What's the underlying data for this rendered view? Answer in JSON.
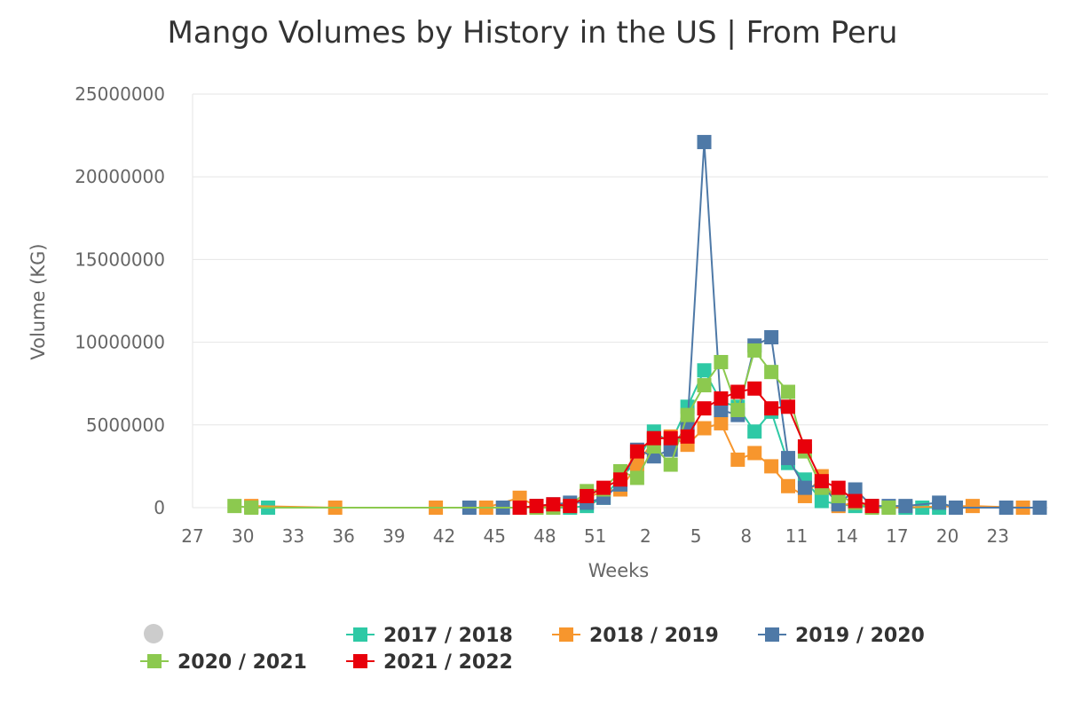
{
  "chart_data": {
    "type": "line",
    "title": "Mango Volumes by History in the US | From Peru",
    "xlabel": "Weeks",
    "ylabel": "Volume (KG)",
    "ylim": [
      0,
      25000000
    ],
    "yticks": [
      0,
      5000000,
      10000000,
      15000000,
      20000000,
      25000000
    ],
    "ytick_labels": [
      "0",
      "5000000",
      "10000000",
      "15000000",
      "20000000",
      "25000000"
    ],
    "week_order": [
      27,
      28,
      29,
      30,
      31,
      32,
      33,
      34,
      35,
      36,
      37,
      38,
      39,
      40,
      41,
      42,
      43,
      44,
      45,
      46,
      47,
      48,
      49,
      50,
      51,
      52,
      1,
      2,
      3,
      4,
      5,
      6,
      7,
      8,
      9,
      10,
      11,
      12,
      13,
      14,
      15,
      16,
      17,
      18,
      19,
      20,
      21,
      22,
      23,
      24,
      25
    ],
    "xtick_labels": [
      "27",
      "30",
      "33",
      "36",
      "39",
      "42",
      "45",
      "48",
      "51",
      "2",
      "5",
      "8",
      "11",
      "14",
      "17",
      "20",
      "23"
    ],
    "grid": true,
    "legend_placement": "bottom",
    "series": [
      {
        "name": "2017 / 2018",
        "color": "#2ec9a5",
        "points": [
          {
            "week": 30,
            "value": 50000
          },
          {
            "week": 31,
            "value": 0
          },
          {
            "week": 46,
            "value": 0
          },
          {
            "week": 47,
            "value": 0
          },
          {
            "week": 48,
            "value": 0
          },
          {
            "week": 49,
            "value": 0
          },
          {
            "week": 50,
            "value": 100000
          },
          {
            "week": 51,
            "value": 600000
          },
          {
            "week": 52,
            "value": 1800000
          },
          {
            "week": 1,
            "value": 2800000
          },
          {
            "week": 2,
            "value": 4600000
          },
          {
            "week": 3,
            "value": 3900000
          },
          {
            "week": 4,
            "value": 6100000
          },
          {
            "week": 5,
            "value": 8300000
          },
          {
            "week": 6,
            "value": 6400000
          },
          {
            "week": 7,
            "value": 6100000
          },
          {
            "week": 8,
            "value": 4600000
          },
          {
            "week": 9,
            "value": 5800000
          },
          {
            "week": 10,
            "value": 2700000
          },
          {
            "week": 11,
            "value": 1700000
          },
          {
            "week": 12,
            "value": 400000
          },
          {
            "week": 13,
            "value": 200000
          },
          {
            "week": 14,
            "value": 100000
          },
          {
            "week": 15,
            "value": 50000
          },
          {
            "week": 16,
            "value": 0
          },
          {
            "week": 17,
            "value": 0
          },
          {
            "week": 18,
            "value": 0
          },
          {
            "week": 19,
            "value": 0
          }
        ]
      },
      {
        "name": "2018 / 2019",
        "color": "#f7962d",
        "points": [
          {
            "week": 30,
            "value": 100000
          },
          {
            "week": 35,
            "value": 0
          },
          {
            "week": 41,
            "value": 0
          },
          {
            "week": 44,
            "value": 0
          },
          {
            "week": 46,
            "value": 600000
          },
          {
            "week": 47,
            "value": 100000
          },
          {
            "week": 48,
            "value": 100000
          },
          {
            "week": 49,
            "value": 200000
          },
          {
            "week": 50,
            "value": 600000
          },
          {
            "week": 51,
            "value": 1000000
          },
          {
            "week": 52,
            "value": 1100000
          },
          {
            "week": 1,
            "value": 2600000
          },
          {
            "week": 2,
            "value": 4100000
          },
          {
            "week": 3,
            "value": 4300000
          },
          {
            "week": 4,
            "value": 3800000
          },
          {
            "week": 5,
            "value": 4800000
          },
          {
            "week": 6,
            "value": 5100000
          },
          {
            "week": 7,
            "value": 2900000
          },
          {
            "week": 8,
            "value": 3300000
          },
          {
            "week": 9,
            "value": 2500000
          },
          {
            "week": 10,
            "value": 1300000
          },
          {
            "week": 11,
            "value": 700000
          },
          {
            "week": 12,
            "value": 1900000
          },
          {
            "week": 13,
            "value": 100000
          },
          {
            "week": 14,
            "value": 300000
          },
          {
            "week": 15,
            "value": 100000
          },
          {
            "week": 16,
            "value": 0
          },
          {
            "week": 21,
            "value": 100000
          },
          {
            "week": 24,
            "value": 0
          }
        ]
      },
      {
        "name": "2019 / 2020",
        "color": "#4e79a7",
        "points": [
          {
            "week": 43,
            "value": 0
          },
          {
            "week": 45,
            "value": 0
          },
          {
            "week": 46,
            "value": 0
          },
          {
            "week": 47,
            "value": 100000
          },
          {
            "week": 48,
            "value": 200000
          },
          {
            "week": 49,
            "value": 300000
          },
          {
            "week": 50,
            "value": 300000
          },
          {
            "week": 51,
            "value": 600000
          },
          {
            "week": 52,
            "value": 1400000
          },
          {
            "week": 1,
            "value": 3500000
          },
          {
            "week": 2,
            "value": 3100000
          },
          {
            "week": 3,
            "value": 3500000
          },
          {
            "week": 4,
            "value": 5000000
          },
          {
            "week": 5,
            "value": 22100000
          },
          {
            "week": 6,
            "value": 5900000
          },
          {
            "week": 7,
            "value": 5600000
          },
          {
            "week": 8,
            "value": 9800000
          },
          {
            "week": 9,
            "value": 10300000
          },
          {
            "week": 10,
            "value": 3000000
          },
          {
            "week": 11,
            "value": 1200000
          },
          {
            "week": 12,
            "value": 1400000
          },
          {
            "week": 13,
            "value": 200000
          },
          {
            "week": 14,
            "value": 1100000
          },
          {
            "week": 15,
            "value": 100000
          },
          {
            "week": 16,
            "value": 100000
          },
          {
            "week": 17,
            "value": 100000
          },
          {
            "week": 19,
            "value": 300000
          },
          {
            "week": 20,
            "value": 0
          },
          {
            "week": 23,
            "value": 0
          },
          {
            "week": 25,
            "value": 0
          }
        ]
      },
      {
        "name": "2020 / 2021",
        "color": "#8cc94f",
        "points": [
          {
            "week": 29,
            "value": 100000
          },
          {
            "week": 30,
            "value": 0
          },
          {
            "week": 47,
            "value": 0
          },
          {
            "week": 48,
            "value": 0
          },
          {
            "week": 49,
            "value": 100000
          },
          {
            "week": 50,
            "value": 1000000
          },
          {
            "week": 51,
            "value": 1100000
          },
          {
            "week": 52,
            "value": 2200000
          },
          {
            "week": 1,
            "value": 1800000
          },
          {
            "week": 2,
            "value": 3700000
          },
          {
            "week": 3,
            "value": 2600000
          },
          {
            "week": 4,
            "value": 5600000
          },
          {
            "week": 5,
            "value": 7400000
          },
          {
            "week": 6,
            "value": 8800000
          },
          {
            "week": 7,
            "value": 5900000
          },
          {
            "week": 8,
            "value": 9500000
          },
          {
            "week": 9,
            "value": 8200000
          },
          {
            "week": 10,
            "value": 7000000
          },
          {
            "week": 11,
            "value": 3400000
          },
          {
            "week": 12,
            "value": 1200000
          },
          {
            "week": 13,
            "value": 700000
          },
          {
            "week": 14,
            "value": 300000
          },
          {
            "week": 15,
            "value": 0
          },
          {
            "week": 16,
            "value": 0
          }
        ]
      },
      {
        "name": "2021 / 2022",
        "color": "#e8000b",
        "points": [
          {
            "week": 46,
            "value": 0
          },
          {
            "week": 47,
            "value": 100000
          },
          {
            "week": 48,
            "value": 200000
          },
          {
            "week": 49,
            "value": 100000
          },
          {
            "week": 50,
            "value": 700000
          },
          {
            "week": 51,
            "value": 1200000
          },
          {
            "week": 52,
            "value": 1700000
          },
          {
            "week": 1,
            "value": 3400000
          },
          {
            "week": 2,
            "value": 4200000
          },
          {
            "week": 3,
            "value": 4200000
          },
          {
            "week": 4,
            "value": 4300000
          },
          {
            "week": 5,
            "value": 6000000
          },
          {
            "week": 6,
            "value": 6600000
          },
          {
            "week": 7,
            "value": 7000000
          },
          {
            "week": 8,
            "value": 7200000
          },
          {
            "week": 9,
            "value": 6000000
          },
          {
            "week": 10,
            "value": 6100000
          },
          {
            "week": 11,
            "value": 3700000
          },
          {
            "week": 12,
            "value": 1600000
          },
          {
            "week": 13,
            "value": 1200000
          },
          {
            "week": 14,
            "value": 400000
          },
          {
            "week": 15,
            "value": 100000
          }
        ]
      }
    ]
  },
  "legend": {
    "order": [
      0,
      1,
      2,
      3,
      4
    ],
    "toggle_color": "#cccccc"
  }
}
